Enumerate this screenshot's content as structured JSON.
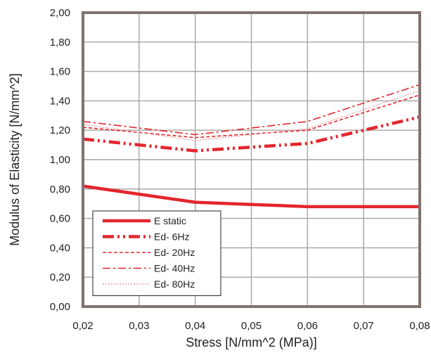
{
  "chart_data": {
    "type": "line",
    "title": "",
    "xlabel": "Stress [N/mm^2 (MPa)]",
    "ylabel": "Modulus of Elasticity [N/mm^2]",
    "xlim": [
      0.02,
      0.08
    ],
    "ylim": [
      0,
      2.0
    ],
    "x_ticks": [
      "0,02",
      "0,03",
      "0,04",
      "0,05",
      "0,06",
      "0,07",
      "0,08"
    ],
    "y_ticks": [
      "0,00",
      "0,20",
      "0,40",
      "0,60",
      "0,80",
      "1,00",
      "1,20",
      "1,40",
      "1,60",
      "1,80",
      "2,00"
    ],
    "x": [
      0.02,
      0.04,
      0.06,
      0.08
    ],
    "grid": true,
    "legend_position": "bottom-left",
    "series": [
      {
        "name": "E static",
        "values": [
          0.82,
          0.71,
          0.68,
          0.68
        ],
        "color": "#e3262d",
        "dash": "solid"
      },
      {
        "name": "Ed- 6Hz",
        "values": [
          1.14,
          1.06,
          1.11,
          1.29
        ],
        "color": "#e3262d",
        "dash": "dash-dot-dot"
      },
      {
        "name": "Ed- 20Hz",
        "values": [
          1.22,
          1.15,
          1.2,
          1.44
        ],
        "color": "#e3262d",
        "dash": "dash"
      },
      {
        "name": "Ed- 40Hz",
        "values": [
          1.26,
          1.17,
          1.26,
          1.51
        ],
        "color": "#e3262d",
        "dash": "dash-dot"
      },
      {
        "name": "Ed- 80Hz",
        "values": [
          1.24,
          1.13,
          1.21,
          1.47
        ],
        "color": "#f08a8e",
        "dash": "dotted"
      }
    ],
    "colors": {
      "frame": "#7f7370",
      "grid": "#a9a29f",
      "series": "#e3262d"
    }
  }
}
